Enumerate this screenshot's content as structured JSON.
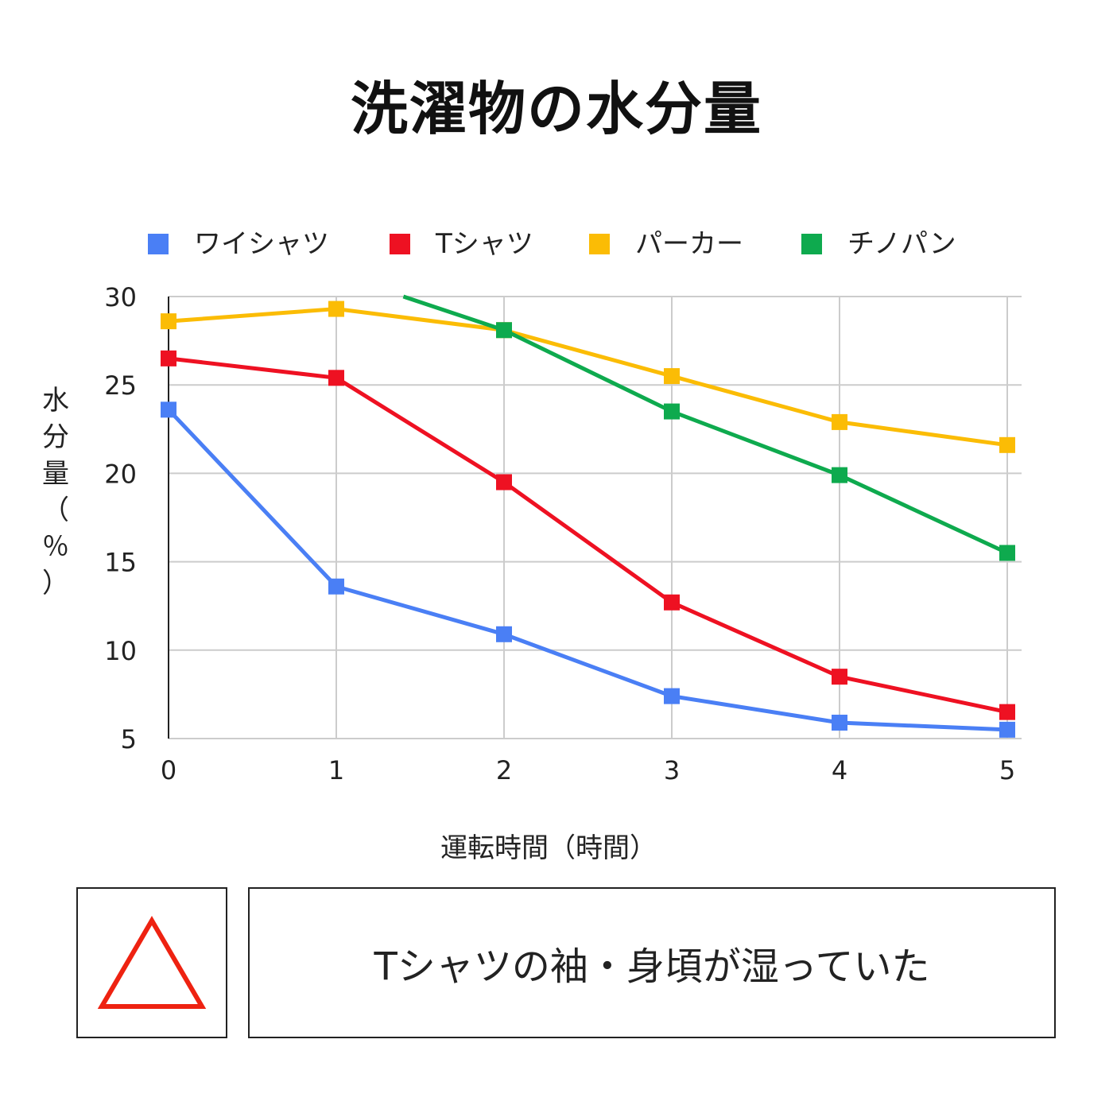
{
  "title": "洗濯物の水分量",
  "chart_data": {
    "type": "line",
    "title": "",
    "xlabel": "運転時間（時間）",
    "ylabel": "水分量（％）",
    "x": [
      0,
      1,
      2,
      3,
      4,
      5
    ],
    "xlim": [
      0,
      5
    ],
    "ylim": [
      5,
      30
    ],
    "yticks": [
      5,
      10,
      15,
      20,
      25,
      30
    ],
    "grid": true,
    "legend_position": "top",
    "series": [
      {
        "name": "ワイシャツ",
        "color": "#4a7ff5",
        "values": [
          23.6,
          13.6,
          10.9,
          7.4,
          5.9,
          5.5
        ]
      },
      {
        "name": "Tシャツ",
        "color": "#ee1122",
        "values": [
          26.5,
          25.4,
          19.5,
          12.7,
          8.5,
          6.5
        ]
      },
      {
        "name": "パーカー",
        "color": "#fbbc05",
        "values": [
          28.6,
          29.3,
          28.1,
          25.5,
          22.9,
          21.6
        ]
      },
      {
        "name": "チノパン",
        "color": "#0eaa4e",
        "values": [
          null,
          null,
          28.1,
          23.5,
          19.9,
          15.5
        ]
      }
    ],
    "chinopan_entry": {
      "from": [
        1.4,
        30
      ],
      "note": "line enters from top edge"
    }
  },
  "rating": {
    "symbol": "triangle-icon",
    "color": "#ee2211"
  },
  "note": "Tシャツの袖・身頃が湿っていた"
}
